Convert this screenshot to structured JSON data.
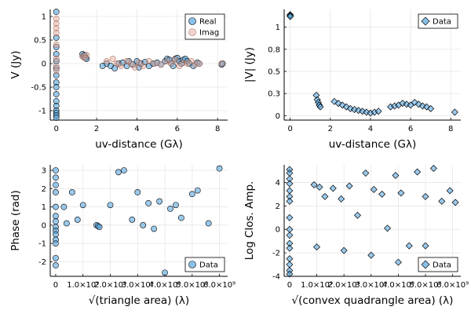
{
  "colors": {
    "series1": "#58a6e0",
    "series2": "#e0a89a",
    "grid": "#e6e6e6",
    "frame": "#000000"
  },
  "chart_data": [
    {
      "type": "scatter",
      "xlabel": "uv-distance (Gλ)",
      "ylabel": "V (Jy)",
      "xlim": [
        -0.3,
        8.5
      ],
      "ylim": [
        -1.2,
        1.15
      ],
      "xticks": [
        0,
        2,
        4,
        6,
        8
      ],
      "yticks": [
        -1.0,
        -0.5,
        0.0,
        0.5,
        1.0
      ],
      "grid": true,
      "legend_position": "top-right",
      "series": [
        {
          "name": "Real",
          "marker": "circle",
          "color": "#58a6e0",
          "x": [
            0,
            0,
            0,
            0,
            0,
            0,
            0,
            0,
            0,
            0,
            0,
            0,
            0,
            0,
            0,
            0,
            1.3,
            1.35,
            1.4,
            1.45,
            1.5,
            2.3,
            2.5,
            2.7,
            2.9,
            3.1,
            3.3,
            3.5,
            3.6,
            3.8,
            4.0,
            4.1,
            4.2,
            4.4,
            4.6,
            4.8,
            5.0,
            5.2,
            5.4,
            5.5,
            5.6,
            5.7,
            5.8,
            5.9,
            6.0,
            6.1,
            6.2,
            6.3,
            6.4,
            6.5,
            6.6,
            6.8,
            7.0,
            7.1,
            8.2,
            8.25
          ],
          "y": [
            1.1,
            0.55,
            0.35,
            0.2,
            0.05,
            -0.1,
            -0.25,
            -0.4,
            -0.5,
            -0.65,
            -0.8,
            -0.9,
            -1.0,
            -1.05,
            -1.1,
            -1.15,
            0.2,
            0.15,
            0.18,
            0.12,
            0.1,
            -0.05,
            0.0,
            -0.05,
            -0.1,
            0.0,
            0.02,
            -0.05,
            0.05,
            -0.02,
            0.05,
            -0.08,
            0.0,
            0.03,
            -0.05,
            0.0,
            0.02,
            -0.02,
            0.05,
            0.1,
            0.08,
            0.0,
            -0.05,
            0.1,
            0.12,
            0.05,
            0.0,
            0.08,
            0.1,
            0.05,
            0.0,
            -0.05,
            0.02,
            0.0,
            -0.02,
            0.0
          ]
        },
        {
          "name": "Imag",
          "marker": "circle",
          "color": "#e0a89a",
          "x": [
            0,
            0,
            0,
            0,
            0,
            0,
            0,
            0,
            1.3,
            1.4,
            1.5,
            2.5,
            2.8,
            3.0,
            3.2,
            3.5,
            3.7,
            3.9,
            4.1,
            4.3,
            4.6,
            4.9,
            5.2,
            5.5,
            5.7,
            5.9,
            6.1,
            6.3,
            6.5,
            6.7,
            6.9,
            7.1,
            8.2
          ],
          "y": [
            0.95,
            0.85,
            0.75,
            0.65,
            0.4,
            0.1,
            -0.05,
            -0.15,
            0.15,
            0.12,
            0.18,
            0.05,
            0.1,
            0.0,
            -0.05,
            0.05,
            0.0,
            -0.08,
            0.02,
            -0.05,
            0.05,
            0.0,
            -0.02,
            0.05,
            0.0,
            0.08,
            -0.05,
            0.02,
            0.0,
            0.05,
            -0.02,
            0.0,
            0.0
          ]
        }
      ]
    },
    {
      "type": "scatter",
      "xlabel": "uv-distance (Gλ)",
      "ylabel": "|V| (Jy)",
      "xlim": [
        -0.3,
        8.5
      ],
      "ylim": [
        -0.05,
        1.2
      ],
      "xticks": [
        0,
        2,
        4,
        6,
        8
      ],
      "yticks": [
        0.0,
        0.25,
        0.5,
        0.75,
        1.0
      ],
      "grid": true,
      "legend_position": "top-right",
      "series": [
        {
          "name": "Data",
          "marker": "diamond",
          "color": "#58a6e0",
          "x": [
            0,
            0,
            0,
            1.3,
            1.35,
            1.4,
            1.45,
            1.5,
            2.2,
            2.4,
            2.6,
            2.8,
            3.0,
            3.2,
            3.4,
            3.6,
            3.8,
            4.0,
            4.2,
            4.4,
            5.0,
            5.2,
            5.4,
            5.6,
            5.8,
            6.0,
            6.2,
            6.4,
            6.6,
            6.8,
            7.0,
            8.2
          ],
          "y": [
            1.14,
            1.13,
            1.12,
            0.23,
            0.18,
            0.15,
            0.12,
            0.1,
            0.16,
            0.14,
            0.12,
            0.1,
            0.08,
            0.07,
            0.06,
            0.05,
            0.04,
            0.03,
            0.04,
            0.05,
            0.1,
            0.11,
            0.12,
            0.14,
            0.13,
            0.12,
            0.15,
            0.13,
            0.11,
            0.1,
            0.08,
            0.04
          ]
        }
      ]
    },
    {
      "type": "scatter",
      "xlabel": "√(triangle area) (λ)",
      "ylabel": "Phase (rad)",
      "xlim": [
        -200000000.0,
        6300000000.0
      ],
      "ylim": [
        -2.8,
        3.3
      ],
      "xticks": [
        0,
        1000000000.0,
        2000000000.0,
        3000000000.0,
        4000000000.0,
        5000000000.0,
        6000000000.0
      ],
      "xticklabels": [
        "0",
        "1.0×10⁹",
        "2.0×10⁹",
        "3.0×10⁹",
        "4.0×10⁹",
        "5.0×10⁹",
        "6.0×10⁹"
      ],
      "yticks": [
        -2,
        -1,
        0,
        1,
        2,
        3
      ],
      "grid": true,
      "legend_position": "bottom-right",
      "series": [
        {
          "name": "Data",
          "marker": "circle",
          "color": "#58a6e0",
          "x": [
            0,
            0,
            0,
            0,
            0,
            0,
            0,
            0,
            0,
            0,
            0,
            0,
            0,
            0,
            300000000.0,
            400000000.0,
            600000000.0,
            800000000.0,
            1000000000.0,
            1500000000.0,
            1550000000.0,
            1600000000.0,
            2000000000.0,
            2300000000.0,
            2500000000.0,
            2800000000.0,
            3000000000.0,
            3200000000.0,
            3400000000.0,
            3600000000.0,
            3800000000.0,
            4000000000.0,
            4200000000.0,
            4400000000.0,
            4600000000.0,
            5000000000.0,
            5200000000.0,
            5600000000.0,
            6000000000.0
          ],
          "y": [
            3.0,
            2.6,
            2.2,
            1.8,
            1.0,
            0.5,
            0.2,
            -0.1,
            -0.3,
            -0.5,
            -0.8,
            -1.0,
            -1.8,
            -2.2,
            1.0,
            0.1,
            1.8,
            0.3,
            1.1,
            0.0,
            -0.05,
            -0.1,
            1.1,
            2.9,
            3.0,
            0.3,
            1.8,
            0.0,
            1.2,
            -0.2,
            1.3,
            -2.6,
            0.9,
            1.1,
            0.4,
            1.7,
            1.9,
            0.1,
            3.1
          ]
        }
      ]
    },
    {
      "type": "scatter",
      "xlabel": "√(convex quadrangle area) (λ)",
      "ylabel": "Log Clos. Amp.",
      "xlim": [
        -200000000.0,
        6300000000.0
      ],
      "ylim": [
        -4,
        5.5
      ],
      "xticks": [
        0,
        1000000000.0,
        2000000000.0,
        3000000000.0,
        4000000000.0,
        5000000000.0,
        6000000000.0
      ],
      "xticklabels": [
        "0",
        "1.0×10⁹",
        "2.0×10⁹",
        "3.0×10⁹",
        "4.0×10⁹",
        "5.0×10⁹",
        "6.0×10⁹"
      ],
      "yticks": [
        -4,
        -2,
        0,
        2,
        4
      ],
      "grid": true,
      "legend_position": "bottom-right",
      "series": [
        {
          "name": "Data",
          "marker": "diamond",
          "color": "#58a6e0",
          "x": [
            0,
            0,
            0,
            0,
            0,
            0,
            0,
            0,
            0,
            0,
            0,
            0,
            0,
            0,
            0,
            0,
            900000000.0,
            1100000000.0,
            1300000000.0,
            1600000000.0,
            1900000000.0,
            2200000000.0,
            2500000000.0,
            2800000000.0,
            3100000000.0,
            3400000000.0,
            3600000000.0,
            3900000000.0,
            4100000000.0,
            4400000000.0,
            4700000000.0,
            5000000000.0,
            5300000000.0,
            5600000000.0,
            5900000000.0,
            6100000000.0,
            1000000000.0,
            2000000000.0,
            3000000000.0,
            4000000000.0,
            5000000000.0
          ],
          "y": [
            5.1,
            4.8,
            4.3,
            3.9,
            3.3,
            2.8,
            2.4,
            1.0,
            0.0,
            -0.5,
            -1.2,
            -1.6,
            -2.5,
            -3.0,
            -3.5,
            -3.8,
            3.8,
            3.6,
            2.8,
            3.5,
            2.6,
            3.7,
            1.2,
            4.8,
            3.4,
            3.0,
            0.1,
            4.6,
            3.1,
            -1.4,
            4.9,
            2.8,
            5.2,
            2.4,
            3.3,
            2.3,
            -1.5,
            -1.8,
            -2.2,
            -2.8,
            -1.4
          ]
        }
      ]
    }
  ]
}
